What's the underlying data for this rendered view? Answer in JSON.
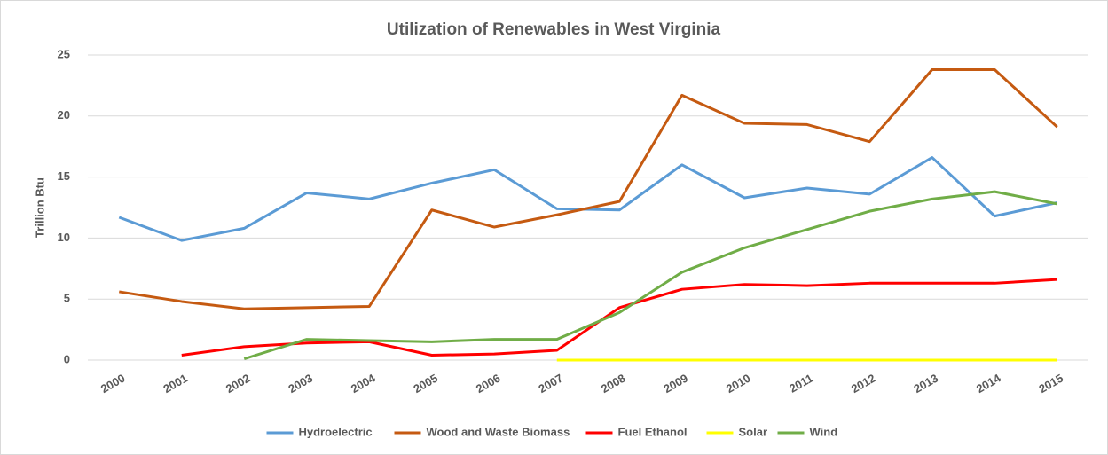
{
  "chart_data": {
    "type": "line",
    "title": "Utilization of Renewables in West Virginia",
    "y_label": "Trillion Btu",
    "categories": [
      "2000",
      "2001",
      "2002",
      "2003",
      "2004",
      "2005",
      "2006",
      "2007",
      "2008",
      "2009",
      "2010",
      "2011",
      "2012",
      "2013",
      "2014",
      "2015"
    ],
    "series": [
      {
        "name": "Hydroelectric",
        "color": "#5b9bd5",
        "values": [
          11.7,
          9.8,
          10.8,
          13.7,
          13.2,
          14.5,
          15.6,
          12.4,
          12.3,
          16.0,
          13.3,
          14.1,
          13.6,
          16.6,
          11.8,
          12.9
        ]
      },
      {
        "name": "Wood and Waste Biomass",
        "color": "#c55a11",
        "values": [
          5.6,
          4.8,
          4.2,
          4.3,
          4.4,
          12.3,
          10.9,
          11.9,
          13.0,
          21.7,
          19.4,
          19.3,
          17.9,
          23.8,
          23.8,
          19.1
        ]
      },
      {
        "name": "Fuel Ethanol",
        "color": "#ff0000",
        "values": [
          null,
          0.4,
          1.1,
          1.4,
          1.5,
          0.4,
          0.5,
          0.8,
          4.3,
          5.8,
          6.2,
          6.1,
          6.3,
          6.3,
          6.3,
          6.6
        ]
      },
      {
        "name": "Solar",
        "color": "#ffff00",
        "values": [
          null,
          null,
          null,
          null,
          null,
          null,
          null,
          0,
          0,
          0,
          0,
          0,
          0,
          0,
          0,
          0
        ]
      },
      {
        "name": "Wind",
        "color": "#70ad47",
        "values": [
          null,
          null,
          0.1,
          1.7,
          1.6,
          1.5,
          1.7,
          1.7,
          3.9,
          7.2,
          9.2,
          10.7,
          12.2,
          13.2,
          13.8,
          12.8
        ]
      }
    ],
    "ylim": [
      0,
      25
    ],
    "yticks": [
      0,
      5,
      10,
      15,
      20,
      25
    ],
    "grid": true,
    "legend": "bottom"
  }
}
